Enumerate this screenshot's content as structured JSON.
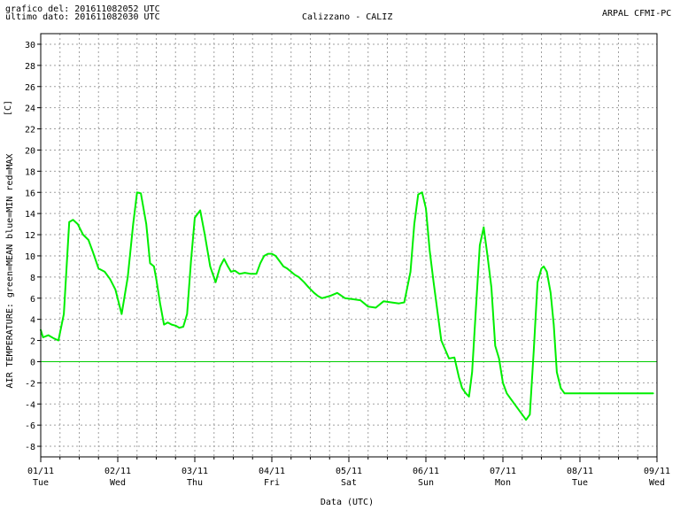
{
  "header": {
    "line1": "grafico del: 201611082052 UTC",
    "line2": "ultimo dato: 201611082030 UTC",
    "station": "Calizzano - CALIZ",
    "source": "ARPAL CFMI-PC"
  },
  "colors": {
    "series": "#00ee00",
    "zero_line": "#00cc00",
    "grid": "#a0a0a0",
    "axis": "#000000"
  },
  "chart_data": {
    "type": "line",
    "title": "Calizzano - CALIZ",
    "ylabel": "AIR TEMPERATURE: green=MEAN  blue=MIN  red=MAX",
    "yunit": "[C]",
    "xlabel": "Data (UTC)",
    "ylim": [
      -9,
      31
    ],
    "yticks": [
      -8,
      -6,
      -4,
      -2,
      0,
      2,
      4,
      6,
      8,
      10,
      12,
      14,
      16,
      18,
      20,
      22,
      24,
      26,
      28,
      30
    ],
    "xlim": [
      0,
      8
    ],
    "xticks": [
      {
        "x": 0,
        "date": "01/11",
        "day": "Tue"
      },
      {
        "x": 1,
        "date": "02/11",
        "day": "Wed"
      },
      {
        "x": 2,
        "date": "03/11",
        "day": "Thu"
      },
      {
        "x": 3,
        "date": "04/11",
        "day": "Fri"
      },
      {
        "x": 4,
        "date": "05/11",
        "day": "Sat"
      },
      {
        "x": 5,
        "date": "06/11",
        "day": "Sun"
      },
      {
        "x": 6,
        "date": "07/11",
        "day": "Mon"
      },
      {
        "x": 7,
        "date": "08/11",
        "day": "Tue"
      },
      {
        "x": 8,
        "date": "09/11",
        "day": "Wed"
      }
    ],
    "grid": true,
    "series": [
      {
        "name": "MEAN",
        "color": "#00ee00",
        "x": [
          0,
          0.03,
          0.1,
          0.17,
          0.23,
          0.3,
          0.37,
          0.42,
          0.48,
          0.55,
          0.62,
          0.68,
          0.75,
          0.83,
          0.9,
          0.97,
          1.05,
          1.13,
          1.2,
          1.25,
          1.3,
          1.37,
          1.42,
          1.47,
          1.5,
          1.55,
          1.6,
          1.65,
          1.7,
          1.75,
          1.8,
          1.85,
          1.9,
          1.95,
          2.0,
          2.07,
          2.13,
          2.2,
          2.27,
          2.33,
          2.38,
          2.43,
          2.47,
          2.52,
          2.58,
          2.65,
          2.73,
          2.8,
          2.85,
          2.9,
          2.95,
          3.0,
          3.05,
          3.1,
          3.15,
          3.2,
          3.25,
          3.3,
          3.35,
          3.42,
          3.48,
          3.55,
          3.6,
          3.65,
          3.75,
          3.85,
          3.95,
          4.05,
          4.15,
          4.25,
          4.35,
          4.45,
          4.55,
          4.65,
          4.72,
          4.8,
          4.85,
          4.9,
          4.95,
          5.0,
          5.05,
          5.1,
          5.2,
          5.3,
          5.37,
          5.43,
          5.47,
          5.52,
          5.56,
          5.6,
          5.65,
          5.7,
          5.75,
          5.8,
          5.85,
          5.9,
          5.95,
          6.0,
          6.05,
          6.1,
          6.15,
          6.2,
          6.25,
          6.3,
          6.35,
          6.4,
          6.45,
          6.5,
          6.53,
          6.57,
          6.62,
          6.66,
          6.7,
          6.75,
          6.8,
          6.85,
          6.9,
          6.95,
          7.0,
          7.05,
          7.1,
          7.15,
          7.2,
          7.25,
          7.3,
          7.35,
          7.4,
          7.45,
          7.5,
          7.55,
          7.6,
          7.65,
          7.7,
          7.75,
          7.8,
          7.85,
          7.9,
          7.95
        ],
        "values": [
          3.0,
          2.3,
          2.5,
          2.2,
          2.0,
          4.5,
          13.2,
          13.4,
          13.0,
          12.0,
          11.5,
          10.3,
          8.8,
          8.5,
          7.8,
          6.8,
          4.5,
          8.0,
          13.0,
          16.0,
          15.9,
          13.0,
          9.3,
          9.0,
          7.8,
          5.5,
          3.5,
          3.7,
          3.5,
          3.4,
          3.2,
          3.3,
          4.5,
          9.5,
          13.6,
          14.3,
          12.0,
          9.0,
          7.5,
          9.0,
          9.7,
          9.0,
          8.5,
          8.6,
          8.3,
          8.4,
          8.3,
          8.3,
          9.3,
          10.0,
          10.2,
          10.2,
          10.0,
          9.5,
          9.0,
          8.8,
          8.5,
          8.2,
          8.0,
          7.5,
          7.0,
          6.5,
          6.2,
          6.0,
          6.2,
          6.5,
          6.0,
          5.9,
          5.8,
          5.2,
          5.1,
          5.7,
          5.6,
          5.5,
          5.6,
          8.5,
          13.0,
          15.8,
          16.0,
          14.5,
          10.5,
          7.5,
          2.0,
          0.3,
          0.4,
          -1.5,
          -2.5,
          -3.0,
          -3.3,
          -1.0,
          5.0,
          11.0,
          12.7,
          10.0,
          7.0,
          1.5,
          0.3,
          -2.0,
          -3.0,
          -3.5,
          -4.0,
          -4.5,
          -5.0,
          -5.5,
          -5.0,
          1.0,
          7.5,
          8.8,
          9.0,
          8.5,
          6.5,
          3.5,
          -1.0,
          -2.5,
          -3.0,
          -3.0,
          -3.0,
          -3.0,
          -3.0,
          -3.0,
          -3.0,
          -3.0,
          -3.0,
          -3.0,
          -3.0,
          -3.0,
          -3.0,
          -3.0,
          -3.0,
          -3.0,
          -3.0,
          -3.0,
          -3.0,
          -3.0,
          -3.0,
          -3.0,
          -3.0,
          -3.0
        ]
      }
    ]
  }
}
